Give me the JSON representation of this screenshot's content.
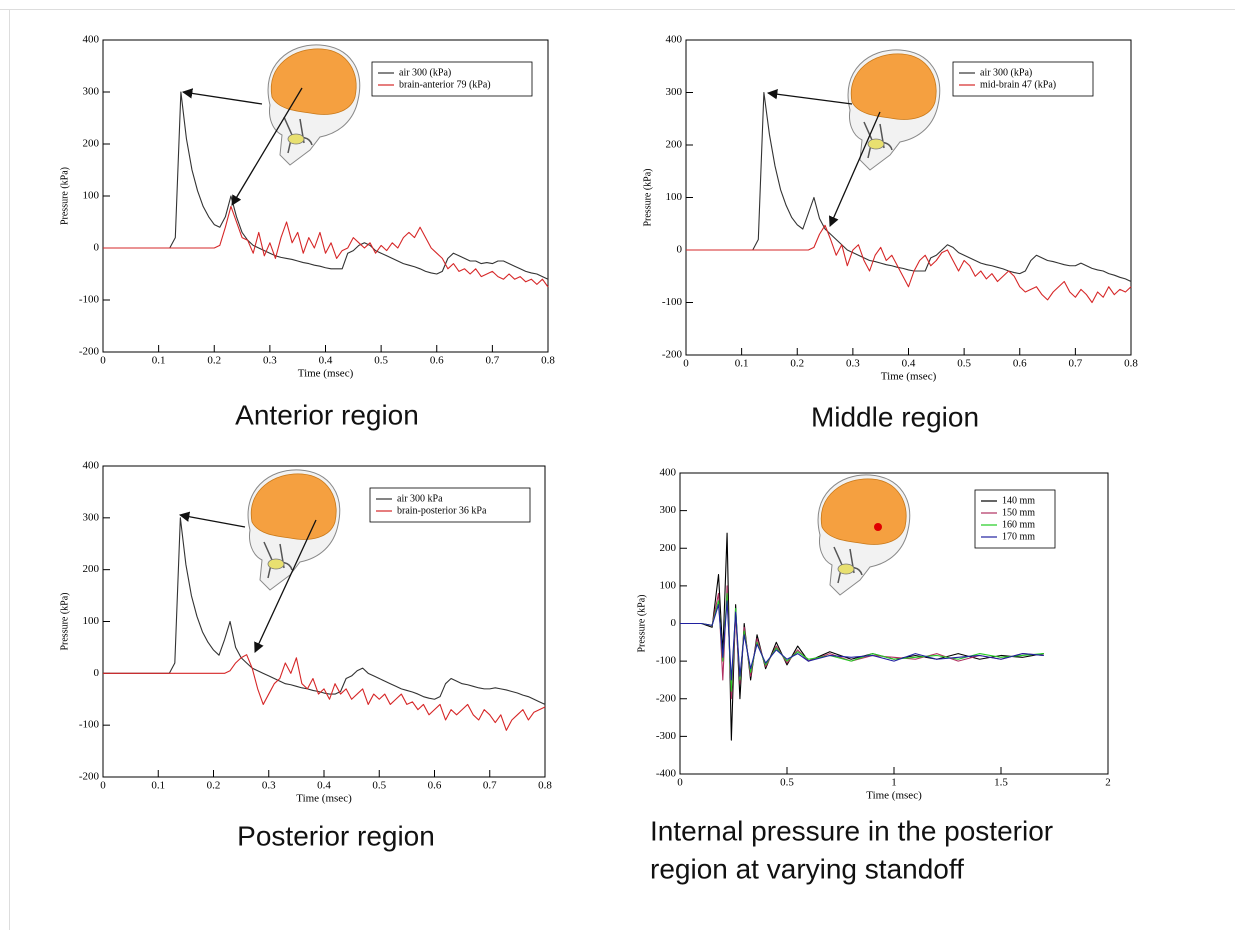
{
  "chart_data": [
    {
      "type": "line",
      "caption": [
        "Anterior region"
      ],
      "xlabel": "Time (msec)",
      "ylabel": "Pressure (kPa)",
      "xlim": [
        0,
        0.8
      ],
      "xticks": [
        0,
        0.1,
        0.2,
        0.3,
        0.4,
        0.5,
        0.6,
        0.7,
        0.8
      ],
      "ylim": [
        -200,
        400
      ],
      "yticks": [
        -200,
        -100,
        0,
        100,
        200,
        300,
        400
      ],
      "legend": "upper right",
      "x": [
        0,
        0.01,
        0.02,
        0.03,
        0.04,
        0.05,
        0.06,
        0.07,
        0.08,
        0.09,
        0.1,
        0.11,
        0.12,
        0.13,
        0.14,
        0.15,
        0.16,
        0.17,
        0.18,
        0.19,
        0.2,
        0.21,
        0.22,
        0.23,
        0.24,
        0.25,
        0.26,
        0.27,
        0.28,
        0.29,
        0.3,
        0.31,
        0.32,
        0.33,
        0.34,
        0.35,
        0.36,
        0.37,
        0.38,
        0.39,
        0.4,
        0.41,
        0.42,
        0.43,
        0.44,
        0.45,
        0.46,
        0.47,
        0.48,
        0.49,
        0.5,
        0.51,
        0.52,
        0.53,
        0.54,
        0.55,
        0.56,
        0.57,
        0.58,
        0.59,
        0.6,
        0.61,
        0.62,
        0.63,
        0.64,
        0.65,
        0.66,
        0.67,
        0.68,
        0.69,
        0.7,
        0.71,
        0.72,
        0.73,
        0.74,
        0.75,
        0.76,
        0.77,
        0.78,
        0.79,
        0.8
      ],
      "series": [
        {
          "name": "air 300 (kPa)",
          "color": "#333333",
          "values": [
            0,
            0,
            0,
            0,
            0,
            0,
            0,
            0,
            0,
            0,
            0,
            0,
            0,
            20,
            300,
            210,
            150,
            110,
            80,
            60,
            45,
            40,
            60,
            100,
            60,
            30,
            15,
            5,
            0,
            -5,
            -10,
            -15,
            -18,
            -20,
            -22,
            -25,
            -28,
            -30,
            -33,
            -35,
            -38,
            -40,
            -40,
            -40,
            -10,
            -5,
            5,
            10,
            5,
            -5,
            -10,
            -15,
            -20,
            -25,
            -30,
            -33,
            -36,
            -40,
            -45,
            -48,
            -50,
            -45,
            -20,
            -10,
            -15,
            -20,
            -25,
            -25,
            -30,
            -28,
            -30,
            -25,
            -25,
            -30,
            -35,
            -40,
            -45,
            -48,
            -50,
            -55,
            -60
          ]
        },
        {
          "name": "brain-anterior 79 (kPa)",
          "color": "#d62728",
          "values": [
            0,
            0,
            0,
            0,
            0,
            0,
            0,
            0,
            0,
            0,
            0,
            0,
            0,
            0,
            0,
            0,
            0,
            0,
            0,
            0,
            0,
            5,
            40,
            80,
            50,
            20,
            15,
            -10,
            30,
            -15,
            10,
            -20,
            20,
            50,
            10,
            30,
            -10,
            20,
            0,
            30,
            -10,
            10,
            -20,
            -5,
            0,
            20,
            10,
            0,
            10,
            -10,
            5,
            -5,
            10,
            0,
            20,
            30,
            20,
            40,
            20,
            0,
            -10,
            -20,
            -40,
            -30,
            -45,
            -40,
            -50,
            -40,
            -55,
            -50,
            -45,
            -55,
            -60,
            -50,
            -60,
            -55,
            -65,
            -60,
            -70,
            -60,
            -75
          ]
        }
      ]
    },
    {
      "type": "line",
      "caption": [
        "Middle region"
      ],
      "xlabel": "Time (msec)",
      "ylabel": "Pressure (kPa)",
      "xlim": [
        0,
        0.8
      ],
      "xticks": [
        0,
        0.1,
        0.2,
        0.3,
        0.4,
        0.5,
        0.6,
        0.7,
        0.8
      ],
      "ylim": [
        -200,
        400
      ],
      "yticks": [
        -200,
        -100,
        0,
        100,
        200,
        300,
        400
      ],
      "legend": "upper right",
      "x": [
        0,
        0.01,
        0.02,
        0.03,
        0.04,
        0.05,
        0.06,
        0.07,
        0.08,
        0.09,
        0.1,
        0.11,
        0.12,
        0.13,
        0.14,
        0.15,
        0.16,
        0.17,
        0.18,
        0.19,
        0.2,
        0.21,
        0.22,
        0.23,
        0.24,
        0.25,
        0.26,
        0.27,
        0.28,
        0.29,
        0.3,
        0.31,
        0.32,
        0.33,
        0.34,
        0.35,
        0.36,
        0.37,
        0.38,
        0.39,
        0.4,
        0.41,
        0.42,
        0.43,
        0.44,
        0.45,
        0.46,
        0.47,
        0.48,
        0.49,
        0.5,
        0.51,
        0.52,
        0.53,
        0.54,
        0.55,
        0.56,
        0.57,
        0.58,
        0.59,
        0.6,
        0.61,
        0.62,
        0.63,
        0.64,
        0.65,
        0.66,
        0.67,
        0.68,
        0.69,
        0.7,
        0.71,
        0.72,
        0.73,
        0.74,
        0.75,
        0.76,
        0.77,
        0.78,
        0.79,
        0.8
      ],
      "series": [
        {
          "name": "air 300 (kPa)",
          "color": "#333333",
          "values": [
            0,
            0,
            0,
            0,
            0,
            0,
            0,
            0,
            0,
            0,
            0,
            0,
            0,
            20,
            300,
            220,
            160,
            115,
            85,
            62,
            48,
            40,
            70,
            100,
            60,
            40,
            30,
            20,
            10,
            0,
            -5,
            -10,
            -15,
            -20,
            -22,
            -25,
            -28,
            -30,
            -33,
            -35,
            -38,
            -40,
            -40,
            -40,
            -15,
            -10,
            0,
            10,
            5,
            -5,
            -10,
            -15,
            -20,
            -25,
            -28,
            -30,
            -33,
            -36,
            -40,
            -43,
            -45,
            -40,
            -20,
            -10,
            -15,
            -20,
            -22,
            -25,
            -28,
            -30,
            -30,
            -25,
            -30,
            -35,
            -38,
            -40,
            -45,
            -48,
            -52,
            -55,
            -60
          ]
        },
        {
          "name": "mid-brain 47 (kPa)",
          "color": "#d62728",
          "values": [
            0,
            0,
            0,
            0,
            0,
            0,
            0,
            0,
            0,
            0,
            0,
            0,
            0,
            0,
            0,
            0,
            0,
            0,
            0,
            0,
            0,
            0,
            0,
            5,
            30,
            47,
            20,
            -10,
            10,
            -30,
            0,
            10,
            -20,
            -40,
            -10,
            5,
            -20,
            -10,
            -30,
            -50,
            -70,
            -40,
            -20,
            -10,
            -30,
            -20,
            -5,
            0,
            -20,
            -40,
            -20,
            -30,
            -50,
            -40,
            -55,
            -45,
            -60,
            -50,
            -40,
            -50,
            -70,
            -80,
            -75,
            -70,
            -85,
            -95,
            -80,
            -70,
            -60,
            -80,
            -90,
            -75,
            -85,
            -100,
            -80,
            -90,
            -70,
            -85,
            -75,
            -80,
            -70
          ]
        }
      ]
    },
    {
      "type": "line",
      "caption": [
        "Posterior region"
      ],
      "xlabel": "Time (msec)",
      "ylabel": "Pressure (kPa)",
      "xlim": [
        0,
        0.8
      ],
      "xticks": [
        0,
        0.1,
        0.2,
        0.3,
        0.4,
        0.5,
        0.6,
        0.7,
        0.8
      ],
      "ylim": [
        -200,
        400
      ],
      "yticks": [
        -200,
        -100,
        0,
        100,
        200,
        300,
        400
      ],
      "legend": "upper right",
      "x": [
        0,
        0.01,
        0.02,
        0.03,
        0.04,
        0.05,
        0.06,
        0.07,
        0.08,
        0.09,
        0.1,
        0.11,
        0.12,
        0.13,
        0.14,
        0.15,
        0.16,
        0.17,
        0.18,
        0.19,
        0.2,
        0.21,
        0.22,
        0.23,
        0.24,
        0.25,
        0.26,
        0.27,
        0.28,
        0.29,
        0.3,
        0.31,
        0.32,
        0.33,
        0.34,
        0.35,
        0.36,
        0.37,
        0.38,
        0.39,
        0.4,
        0.41,
        0.42,
        0.43,
        0.44,
        0.45,
        0.46,
        0.47,
        0.48,
        0.49,
        0.5,
        0.51,
        0.52,
        0.53,
        0.54,
        0.55,
        0.56,
        0.57,
        0.58,
        0.59,
        0.6,
        0.61,
        0.62,
        0.63,
        0.64,
        0.65,
        0.66,
        0.67,
        0.68,
        0.69,
        0.7,
        0.71,
        0.72,
        0.73,
        0.74,
        0.75,
        0.76,
        0.77,
        0.78,
        0.79,
        0.8
      ],
      "series": [
        {
          "name": "air 300 kPa",
          "color": "#333333",
          "values": [
            0,
            0,
            0,
            0,
            0,
            0,
            0,
            0,
            0,
            0,
            0,
            0,
            0,
            20,
            300,
            210,
            150,
            110,
            80,
            60,
            45,
            35,
            65,
            100,
            50,
            30,
            20,
            10,
            5,
            0,
            -5,
            -10,
            -15,
            -20,
            -22,
            -25,
            -28,
            -30,
            -33,
            -35,
            -38,
            -40,
            -40,
            -35,
            -10,
            -5,
            5,
            10,
            0,
            -5,
            -10,
            -15,
            -20,
            -25,
            -30,
            -33,
            -36,
            -40,
            -45,
            -48,
            -50,
            -45,
            -20,
            -10,
            -15,
            -20,
            -22,
            -25,
            -28,
            -30,
            -30,
            -28,
            -30,
            -32,
            -35,
            -38,
            -42,
            -45,
            -50,
            -55,
            -60
          ]
        },
        {
          "name": "brain-posterior 36 kPa",
          "color": "#d62728",
          "values": [
            0,
            0,
            0,
            0,
            0,
            0,
            0,
            0,
            0,
            0,
            0,
            0,
            0,
            0,
            0,
            0,
            0,
            0,
            0,
            0,
            0,
            0,
            0,
            5,
            20,
            30,
            36,
            10,
            -30,
            -60,
            -40,
            -20,
            -10,
            20,
            0,
            30,
            -20,
            -30,
            -10,
            -40,
            -30,
            -50,
            -20,
            -40,
            -30,
            -50,
            -40,
            -30,
            -60,
            -40,
            -50,
            -40,
            -60,
            -50,
            -40,
            -60,
            -55,
            -70,
            -60,
            -80,
            -70,
            -60,
            -90,
            -70,
            -80,
            -70,
            -60,
            -80,
            -90,
            -70,
            -80,
            -95,
            -80,
            -110,
            -90,
            -80,
            -70,
            -90,
            -75,
            -70,
            -65
          ]
        }
      ]
    },
    {
      "type": "line",
      "caption": [
        "Internal pressure in the posterior",
        "region at varying standoff"
      ],
      "xlabel": "Time (msec)",
      "ylabel": "Pressure (kPa)",
      "xlim": [
        0,
        2
      ],
      "xticks": [
        0,
        0.5,
        1,
        1.5,
        2
      ],
      "ylim": [
        -400,
        400
      ],
      "yticks": [
        -400,
        -300,
        -200,
        -100,
        0,
        100,
        200,
        300,
        400
      ],
      "legend": "upper right",
      "x": [
        0,
        0.1,
        0.15,
        0.18,
        0.2,
        0.22,
        0.24,
        0.26,
        0.28,
        0.3,
        0.33,
        0.36,
        0.4,
        0.45,
        0.5,
        0.55,
        0.6,
        0.7,
        0.8,
        0.9,
        1.0,
        1.1,
        1.2,
        1.3,
        1.4,
        1.5,
        1.6,
        1.7
      ],
      "series": [
        {
          "name": "140 mm",
          "color": "#000000",
          "values": [
            0,
            0,
            -10,
            130,
            -80,
            240,
            -310,
            50,
            -200,
            0,
            -150,
            -30,
            -120,
            -50,
            -110,
            -60,
            -100,
            -75,
            -95,
            -80,
            -95,
            -85,
            -95,
            -80,
            -95,
            -85,
            -90,
            -80
          ]
        },
        {
          "name": "150 mm",
          "color": "#b03060",
          "values": [
            0,
            0,
            -5,
            80,
            -150,
            100,
            -200,
            20,
            -160,
            -10,
            -140,
            -40,
            -115,
            -60,
            -105,
            -70,
            -100,
            -80,
            -100,
            -85,
            -90,
            -95,
            -80,
            -100,
            -85,
            -95,
            -80,
            -85
          ]
        },
        {
          "name": "160 mm",
          "color": "#22cc22",
          "values": [
            0,
            0,
            -5,
            60,
            -100,
            80,
            -180,
            40,
            -150,
            -20,
            -130,
            -50,
            -110,
            -65,
            -100,
            -75,
            -95,
            -85,
            -100,
            -80,
            -95,
            -90,
            -85,
            -95,
            -80,
            -90,
            -85,
            -80
          ]
        },
        {
          "name": "170 mm",
          "color": "#2020a0",
          "values": [
            0,
            0,
            -5,
            50,
            -90,
            60,
            -150,
            30,
            -140,
            -30,
            -120,
            -55,
            -105,
            -70,
            -95,
            -80,
            -100,
            -85,
            -90,
            -85,
            -100,
            -80,
            -95,
            -90,
            -85,
            -95,
            -80,
            -85
          ]
        }
      ]
    }
  ]
}
